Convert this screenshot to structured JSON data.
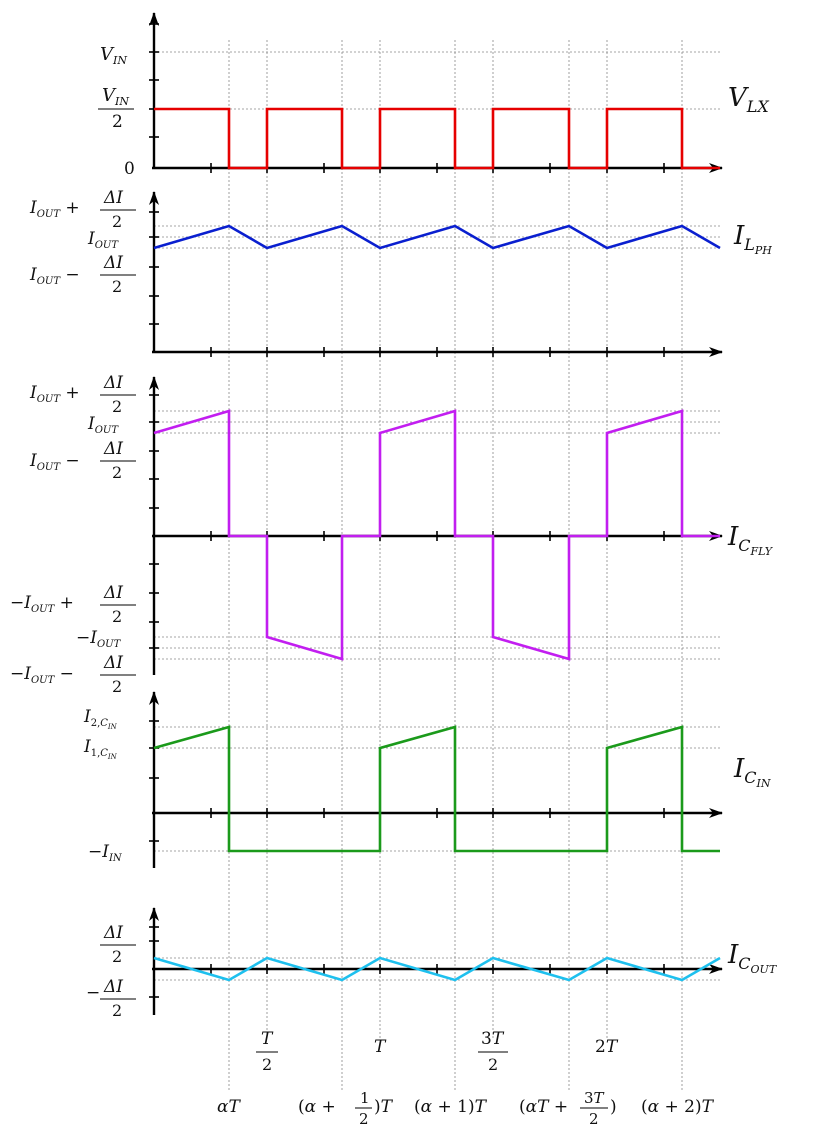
{
  "colors": {
    "v_lx": "#e60000",
    "i_l_ph": "#0a1fcf",
    "i_c_fly": "#c21ef0",
    "i_c_in": "#1b9a1b",
    "i_c_out": "#1ec0ee",
    "axis": "#000000",
    "grid": "#888888"
  },
  "signals": {
    "v_lx": "V_LX",
    "i_l_ph": "I_L_PH",
    "i_c_fly": "I_C_FLY",
    "i_c_in": "I_C_IN",
    "i_c_out": "I_C_OUT"
  },
  "y_labels": {
    "v_in": "V_IN",
    "v_in_half": "V_IN / 2",
    "zero": "0",
    "iout_plus": "I_OUT + ΔI/2",
    "iout": "I_OUT",
    "iout_minus": "I_OUT − ΔI/2",
    "neg_iout_plus": "−I_OUT + ΔI/2",
    "neg_iout": "−I_OUT",
    "neg_iout_minus": "−I_OUT − ΔI/2",
    "i2_cin": "I_2,C_IN",
    "i1_cin": "I_1,C_IN",
    "neg_iin": "−I_IN",
    "dI_half": "ΔI/2",
    "neg_dI_half": "−ΔI/2"
  },
  "x_labels_top": [
    "T/2",
    "T",
    "3T/2",
    "2T"
  ],
  "x_labels_bottom": [
    "αT",
    "(α + 1/2)T",
    "(α + 1)T",
    "(αT + 3T/2)",
    "(α + 2)T"
  ],
  "chart_data": {
    "type": "line",
    "x_unit": "T",
    "alpha": 0.33,
    "series": [
      {
        "name": "V_LX",
        "x": [
          0,
          0.33,
          0.33,
          0.5,
          0.5,
          0.83,
          0.83,
          1,
          1,
          1.33,
          1.33,
          1.5,
          1.5,
          1.83,
          1.83,
          2,
          2,
          2.33,
          2.33,
          2.5
        ],
        "y": [
          "V_IN/2",
          "V_IN/2",
          0,
          0,
          "V_IN/2",
          "V_IN/2",
          0,
          0,
          "V_IN/2",
          "V_IN/2",
          0,
          0,
          "V_IN/2",
          "V_IN/2",
          0,
          0,
          "V_IN/2",
          "V_IN/2",
          0,
          0
        ]
      },
      {
        "name": "I_L_PH",
        "x": [
          0,
          0.33,
          0.5,
          0.83,
          1,
          1.33,
          1.5,
          1.83,
          2,
          2.33,
          2.5
        ],
        "y": [
          "I_OUT−ΔI/2",
          "I_OUT+ΔI/2",
          "I_OUT−ΔI/2",
          "I_OUT+ΔI/2",
          "I_OUT−ΔI/2",
          "I_OUT+ΔI/2",
          "I_OUT−ΔI/2",
          "I_OUT+ΔI/2",
          "I_OUT−ΔI/2",
          "I_OUT+ΔI/2",
          "I_OUT−ΔI/2"
        ]
      },
      {
        "name": "I_C_FLY",
        "x": [
          0,
          0.33,
          0.33,
          0.5,
          0.5,
          0.83,
          0.83,
          1,
          1,
          1.33,
          1.33,
          1.5,
          1.5,
          1.83,
          1.83,
          2,
          2,
          2.33,
          2.33,
          2.5
        ],
        "y": [
          "I_OUT−ΔI/2",
          "I_OUT+ΔI/2",
          0,
          0,
          "−I_OUT+ΔI/2",
          "−I_OUT−ΔI/2",
          0,
          0,
          "I_OUT−ΔI/2",
          "I_OUT+ΔI/2",
          0,
          0,
          "−I_OUT+ΔI/2",
          "−I_OUT−ΔI/2",
          0,
          0,
          "I_OUT−ΔI/2",
          "I_OUT+ΔI/2",
          0,
          0
        ]
      },
      {
        "name": "I_C_IN",
        "x": [
          0,
          0.33,
          0.33,
          1,
          1,
          1.33,
          1.33,
          2,
          2,
          2.33,
          2.33,
          2.5
        ],
        "y": [
          "I_1,C_IN",
          "I_2,C_IN",
          "−I_IN",
          "−I_IN",
          "I_1,C_IN",
          "I_2,C_IN",
          "−I_IN",
          "−I_IN",
          "I_1,C_IN",
          "I_2,C_IN",
          "−I_IN",
          "−I_IN"
        ]
      },
      {
        "name": "I_C_OUT",
        "x": [
          0,
          0.33,
          0.5,
          0.83,
          1,
          1.33,
          1.5,
          1.83,
          2,
          2.33,
          2.5
        ],
        "y": [
          "ΔI/2",
          "−ΔI/2",
          "ΔI/2",
          "−ΔI/2",
          "ΔI/2",
          "−ΔI/2",
          "ΔI/2",
          "−ΔI/2",
          "ΔI/2",
          "−ΔI/2",
          "ΔI/2"
        ]
      }
    ]
  }
}
